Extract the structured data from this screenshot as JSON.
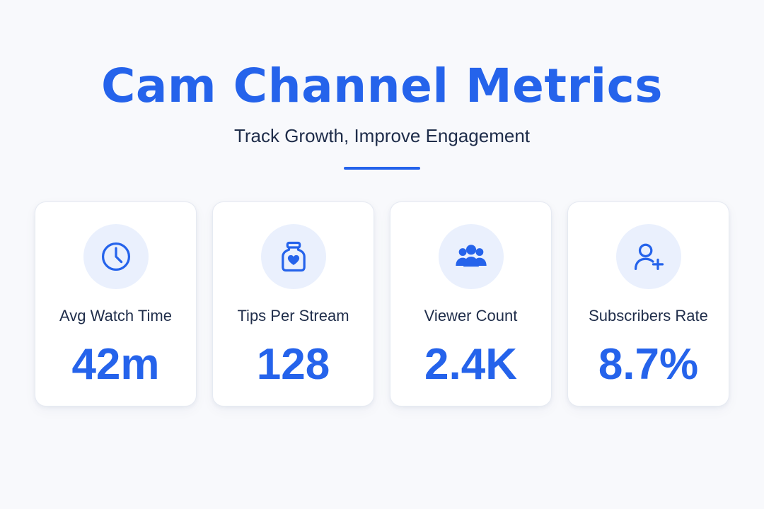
{
  "header": {
    "title": "Cam Channel Metrics",
    "subtitle": "Track Growth, Improve Engagement"
  },
  "theme": {
    "accent": "#2563eb",
    "text": "#1f2d4a",
    "icon_bg": "#eaf0fd",
    "background": "#f8f9fc"
  },
  "metrics": [
    {
      "label": "Avg Watch Time",
      "value": "42m",
      "icon": "clock-icon"
    },
    {
      "label": "Tips Per Stream",
      "value": "128",
      "icon": "tip-jar-heart-icon"
    },
    {
      "label": "Viewer Count",
      "value": "2.4K",
      "icon": "users-group-icon"
    },
    {
      "label": "Subscribers Rate",
      "value": "8.7%",
      "icon": "user-plus-icon"
    }
  ]
}
